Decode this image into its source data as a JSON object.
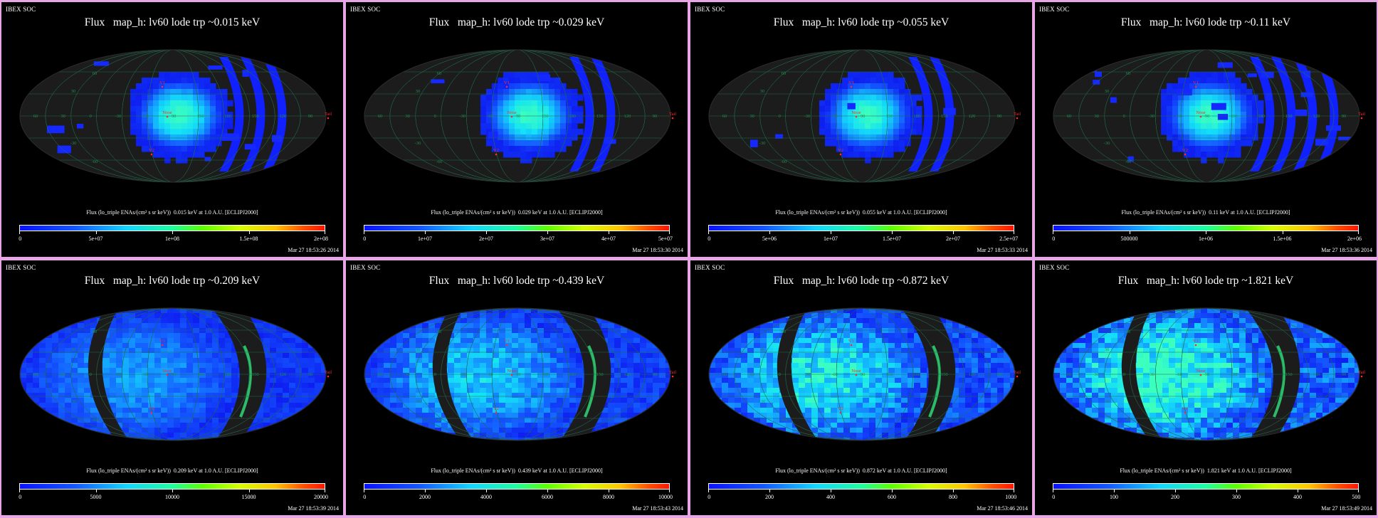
{
  "colors": {
    "frame": "#e8a6e6",
    "panel_bg": "#000000",
    "ellipse_fill": "#1c1c1c",
    "grid": "#1e6b4a",
    "label_green": "#1f8f4f",
    "marker_red": "#ff2a2a",
    "high_energy_background": "#1c3cff"
  },
  "chart_data": [
    {
      "type": "heatmap",
      "corner": "IBEX SOC",
      "title": "Flux   map_h: lv60 lode trp ~0.015 keV",
      "caption": "Flux (lo_triple ENAs/(cm² s sr keV))  0.015 keV at 1.0 A.U. [ECLIPJ2000]",
      "colorbar": {
        "min": 0,
        "max": 200000000,
        "ticks": [
          "0",
          "5e+07",
          "1e+08",
          "1.5e+08",
          "2e+08"
        ]
      },
      "timestamp": "Mar 27 18:53:26 2014",
      "coverage": "partial",
      "data_gap": false
    },
    {
      "type": "heatmap",
      "corner": "IBEX SOC",
      "title": "Flux   map_h: lv60 lode trp ~0.029 keV",
      "caption": "Flux (lo_triple ENAs/(cm² s sr keV))  0.029 keV at 1.0 A.U. [ECLIPJ2000]",
      "colorbar": {
        "min": 0,
        "max": 50000000,
        "ticks": [
          "0",
          "1e+07",
          "2e+07",
          "3e+07",
          "4e+07",
          "5e+07"
        ]
      },
      "timestamp": "Mar 27 18:53:30 2014",
      "coverage": "partial",
      "data_gap": false
    },
    {
      "type": "heatmap",
      "corner": "IBEX SOC",
      "title": "Flux   map_h: lv60 lode trp ~0.055 keV",
      "caption": "Flux (lo_triple ENAs/(cm² s sr keV))  0.055 keV at 1.0 A.U. [ECLIPJ2000]",
      "colorbar": {
        "min": 0,
        "max": 25000000,
        "ticks": [
          "0",
          "5e+06",
          "1e+07",
          "1.5e+07",
          "2e+07",
          "2.5e+07"
        ]
      },
      "timestamp": "Mar 27 18:53:33 2014",
      "coverage": "partial",
      "data_gap": false
    },
    {
      "type": "heatmap",
      "corner": "IBEX SOC",
      "title": "Flux   map_h: lv60 lode trp ~0.11 keV",
      "caption": "Flux (lo_triple ENAs/(cm² s sr keV))  0.11 keV at 1.0 A.U. [ECLIPJ2000]",
      "colorbar": {
        "min": 0,
        "max": 2000000,
        "ticks": [
          "0",
          "500000",
          "1e+06",
          "1.5e+06",
          "2e+06"
        ]
      },
      "timestamp": "Mar 27 18:53:36 2014",
      "coverage": "partial",
      "data_gap": false
    },
    {
      "type": "heatmap",
      "corner": "IBEX SOC",
      "title": "Flux   map_h: lv60 lode trp ~0.209 keV",
      "caption": "Flux (lo_triple ENAs/(cm² s sr keV))  0.209 keV at 1.0 A.U. [ECLIPJ2000]",
      "colorbar": {
        "min": 0,
        "max": 20000,
        "ticks": [
          "0",
          "5000",
          "10000",
          "15000",
          "20000"
        ]
      },
      "timestamp": "Mar 27 18:53:39 2014",
      "coverage": "full",
      "data_gap": true
    },
    {
      "type": "heatmap",
      "corner": "IBEX SOC",
      "title": "Flux   map_h: lv60 lode trp ~0.439 keV",
      "caption": "Flux (lo_triple ENAs/(cm² s sr keV))  0.439 keV at 1.0 A.U. [ECLIPJ2000]",
      "colorbar": {
        "min": 0,
        "max": 10000,
        "ticks": [
          "0",
          "2000",
          "4000",
          "6000",
          "8000",
          "10000"
        ]
      },
      "timestamp": "Mar 27 18:53:43 2014",
      "coverage": "full",
      "data_gap": true
    },
    {
      "type": "heatmap",
      "corner": "IBEX SOC",
      "title": "Flux   map_h: lv60 lode trp ~0.872 keV",
      "caption": "Flux (lo_triple ENAs/(cm² s sr keV))  0.872 keV at 1.0 A.U. [ECLIPJ2000]",
      "colorbar": {
        "min": 0,
        "max": 1000,
        "ticks": [
          "0",
          "200",
          "400",
          "600",
          "800",
          "1000"
        ]
      },
      "timestamp": "Mar 27 18:53:46 2014",
      "coverage": "full",
      "data_gap": true
    },
    {
      "type": "heatmap",
      "corner": "IBEX SOC",
      "title": "Flux   map_h: lv60 lode trp ~1.821 keV",
      "caption": "Flux (lo_triple ENAs/(cm² s sr keV))  1.821 keV at 1.0 A.U. [ECLIPJ2000]",
      "colorbar": {
        "min": 0,
        "max": 500,
        "ticks": [
          "0",
          "100",
          "200",
          "300",
          "400",
          "500"
        ]
      },
      "timestamp": "Mar 27 18:53:49 2014",
      "coverage": "full",
      "data_gap": true
    }
  ],
  "map_labels": {
    "longitudes": [
      "60",
      "30",
      "0",
      "-30",
      "-60",
      "-90",
      "150",
      "180",
      "150",
      "120",
      "90"
    ],
    "latitudes": [
      "60",
      "30",
      "-30",
      "-60"
    ],
    "markers": [
      "V1",
      "V2",
      "Nose",
      "Tail"
    ]
  }
}
